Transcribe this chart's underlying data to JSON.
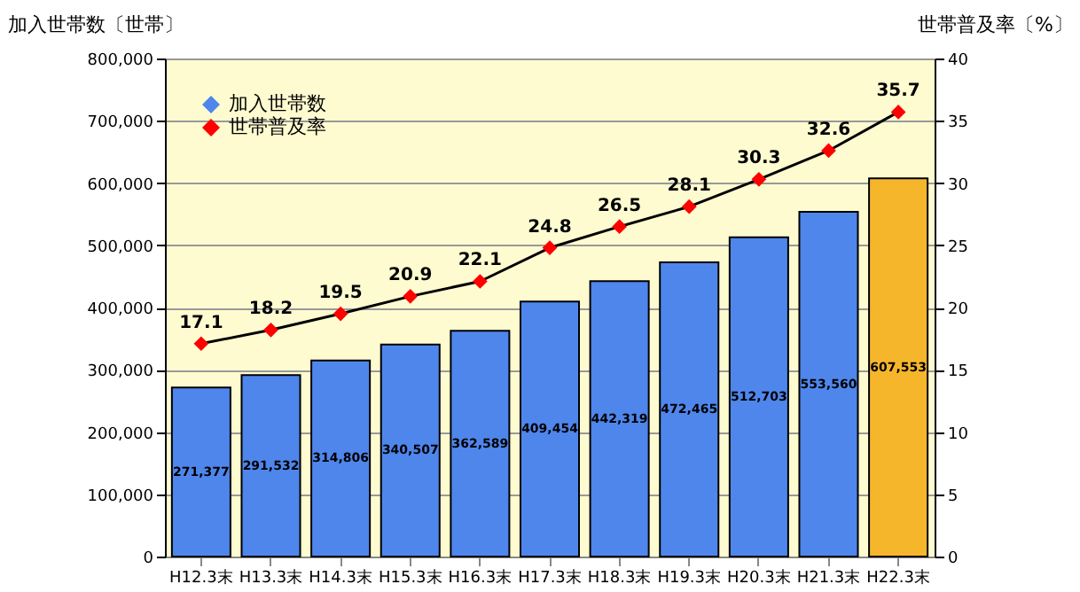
{
  "chart_data": {
    "type": "bar",
    "categories": [
      "H12.3末",
      "H13.3末",
      "H14.3末",
      "H15.3末",
      "H16.3末",
      "H17.3末",
      "H18.3末",
      "H19.3末",
      "H20.3末",
      "H21.3末",
      "H22.3末"
    ],
    "series": [
      {
        "name": "加入世帯数",
        "value_labels": [
          "271,377",
          "291,532",
          "314,806",
          "340,507",
          "362,589",
          "409,454",
          "442,319",
          "472,465",
          "512,703",
          "553,560",
          "607,553"
        ],
        "color": "#4f86ec",
        "colors": [
          "#4f86ec",
          "#4f86ec",
          "#4f86ec",
          "#4f86ec",
          "#4f86ec",
          "#4f86ec",
          "#4f86ec",
          "#4f86ec",
          "#4f86ec",
          "#4f86ec",
          "#f6b62c"
        ],
        "values": [
          271377,
          291532,
          314806,
          340507,
          362589,
          409454,
          442319,
          472465,
          512703,
          553560,
          607553
        ]
      },
      {
        "name": "世帯普及率",
        "type": "line",
        "axis": "y2",
        "color": "#ff0000",
        "marker": "diamond",
        "values": [
          17.1,
          18.2,
          19.5,
          20.9,
          22.1,
          24.8,
          26.5,
          28.1,
          30.3,
          32.6,
          35.7
        ]
      }
    ],
    "ylabel": "加入世帯数〔世帯〕",
    "y2label": "世帯普及率〔%〕",
    "ylim": [
      0,
      800000
    ],
    "yticks": [
      {
        "value": 0,
        "label": "0"
      },
      {
        "value": 100000,
        "label": "100,000"
      },
      {
        "value": 200000,
        "label": "200,000"
      },
      {
        "value": 300000,
        "label": "300,000"
      },
      {
        "value": 400000,
        "label": "400,000"
      },
      {
        "value": 500000,
        "label": "500,000"
      },
      {
        "value": 600000,
        "label": "600,000"
      },
      {
        "value": 700000,
        "label": "700,000"
      },
      {
        "value": 800000,
        "label": "800,000"
      }
    ],
    "y2lim": [
      0,
      40
    ],
    "y2ticks": [
      0,
      5,
      10,
      15,
      20,
      25,
      30,
      35,
      40
    ],
    "grid": "y",
    "legend": "top left",
    "data_labels": true
  }
}
